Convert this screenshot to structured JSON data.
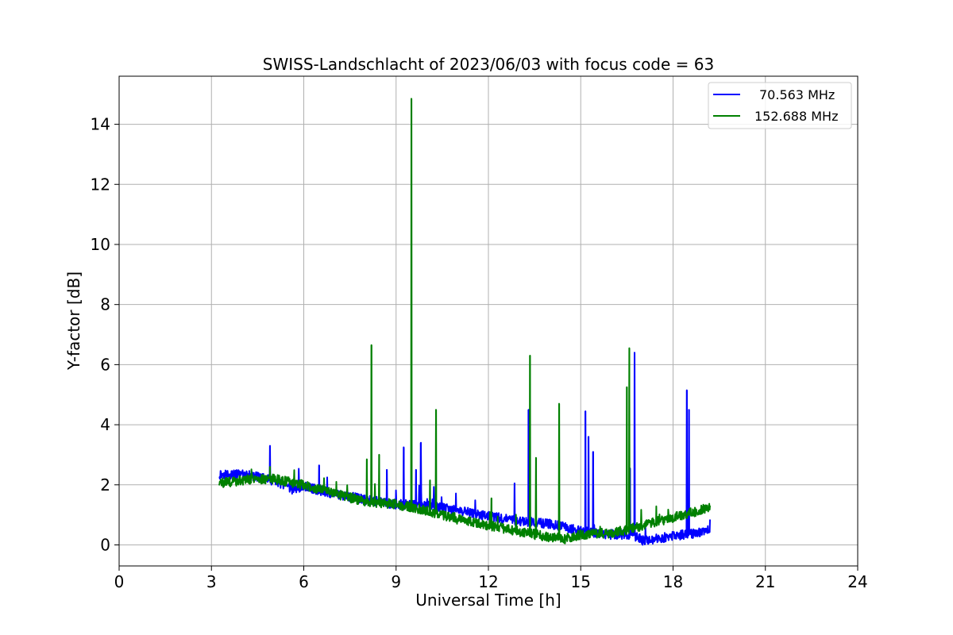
{
  "chart_data": {
    "type": "line",
    "title": "SWISS-Landschlacht of 2023/06/03 with focus code = 63",
    "xlabel": "Universal Time [h]",
    "ylabel": "Y-factor [dB]",
    "xlim": [
      0,
      24
    ],
    "ylim": [
      -0.7,
      15.6
    ],
    "xticks": [
      0,
      3,
      6,
      9,
      12,
      15,
      18,
      21,
      24
    ],
    "yticks": [
      0,
      2,
      4,
      6,
      8,
      10,
      12,
      14
    ],
    "grid": true,
    "legend_position": "top-right",
    "series": [
      {
        "name": "70.563 MHz",
        "color": "#0000ff",
        "baseline": {
          "x": [
            3.25,
            4.0,
            4.5,
            5.0,
            5.6,
            6.0,
            7.0,
            8.0,
            9.0,
            10.0,
            11.0,
            12.0,
            13.0,
            14.0,
            14.5,
            15.0,
            16.0,
            16.7,
            17.0,
            17.5,
            18.0,
            18.5,
            19.2
          ],
          "y": [
            2.35,
            2.35,
            2.25,
            2.15,
            1.85,
            1.95,
            1.7,
            1.5,
            1.35,
            1.3,
            1.15,
            0.95,
            0.8,
            0.7,
            0.6,
            0.45,
            0.35,
            0.35,
            0.15,
            0.2,
            0.3,
            0.35,
            0.5
          ]
        },
        "spikes": [
          {
            "x": 4.9,
            "y": 3.3
          },
          {
            "x": 6.5,
            "y": 2.65
          },
          {
            "x": 8.7,
            "y": 2.5
          },
          {
            "x": 9.25,
            "y": 3.25
          },
          {
            "x": 9.65,
            "y": 2.5
          },
          {
            "x": 9.8,
            "y": 3.4
          },
          {
            "x": 12.85,
            "y": 2.05
          },
          {
            "x": 13.3,
            "y": 4.5
          },
          {
            "x": 15.15,
            "y": 4.45
          },
          {
            "x": 15.25,
            "y": 3.6
          },
          {
            "x": 15.4,
            "y": 3.1
          },
          {
            "x": 16.6,
            "y": 2.55
          },
          {
            "x": 16.75,
            "y": 6.4
          },
          {
            "x": 18.45,
            "y": 5.15
          },
          {
            "x": 18.52,
            "y": 4.5
          }
        ]
      },
      {
        "name": "152.688 MHz",
        "color": "#008000",
        "baseline": {
          "x": [
            3.25,
            4.0,
            4.5,
            5.0,
            6.0,
            7.0,
            8.0,
            9.0,
            10.0,
            11.0,
            12.0,
            13.0,
            14.0,
            14.5,
            15.0,
            16.0,
            16.5,
            17.0,
            18.0,
            18.5,
            19.2
          ],
          "y": [
            2.05,
            2.15,
            2.2,
            2.2,
            2.0,
            1.7,
            1.45,
            1.35,
            1.15,
            0.85,
            0.65,
            0.45,
            0.25,
            0.2,
            0.35,
            0.4,
            0.5,
            0.65,
            0.9,
            1.05,
            1.25
          ]
        },
        "spikes": [
          {
            "x": 4.9,
            "y": 2.6
          },
          {
            "x": 8.05,
            "y": 2.85
          },
          {
            "x": 8.2,
            "y": 6.65
          },
          {
            "x": 8.45,
            "y": 3.0
          },
          {
            "x": 9.5,
            "y": 14.85
          },
          {
            "x": 10.1,
            "y": 2.15
          },
          {
            "x": 10.3,
            "y": 4.5
          },
          {
            "x": 12.1,
            "y": 1.55
          },
          {
            "x": 13.35,
            "y": 6.3
          },
          {
            "x": 13.55,
            "y": 2.9
          },
          {
            "x": 14.3,
            "y": 4.7
          },
          {
            "x": 16.5,
            "y": 5.25
          },
          {
            "x": 16.58,
            "y": 6.55
          }
        ]
      }
    ]
  }
}
